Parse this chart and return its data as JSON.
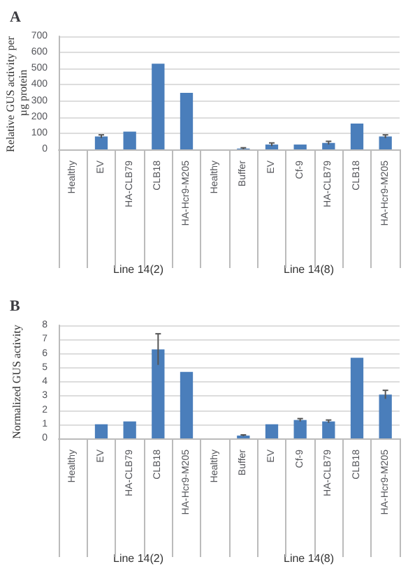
{
  "chart_data": [
    {
      "type": "bar",
      "title": "A",
      "ylabel": "Relative GUS activity per µg protein",
      "categories": [
        "Healthy",
        "EV",
        "HA-CLB79",
        "CLB18",
        "HA-Hcr9-M205",
        "Healthy",
        "Buffer",
        "EV",
        "Cf-9",
        "HA-CLB79",
        "CLB18",
        "HA-Hcr9-M205"
      ],
      "series": [
        {
          "color": "#4a7ebb",
          "values": [
            0,
            80,
            110,
            530,
            350,
            0,
            5,
            30,
            30,
            40,
            160,
            80
          ],
          "errors": [
            null,
            10,
            null,
            null,
            null,
            null,
            5,
            10,
            null,
            10,
            null,
            10
          ]
        }
      ],
      "ylim": [
        0,
        700
      ],
      "yticks": [
        0,
        100,
        200,
        300,
        400,
        500,
        600,
        700
      ],
      "grid": "y",
      "annotations": [
        "Line 14(2)",
        "Line 14(8)"
      ]
    },
    {
      "type": "bar",
      "title": "B",
      "ylabel": "Normalized GUS activity",
      "categories": [
        "Healthy",
        "EV",
        "HA-CLB79",
        "CLB18",
        "HA-Hcr9-M205",
        "Healthy",
        "Buffer",
        "EV",
        "Cf-9",
        "HA-CLB79",
        "CLB18",
        "HA-Hcr9-M205"
      ],
      "series": [
        {
          "color": "#4a7ebb",
          "values": [
            0,
            1,
            1.2,
            6.3,
            4.7,
            0,
            0.2,
            1,
            1.3,
            1.2,
            5.7,
            3.1
          ],
          "errors": [
            null,
            null,
            null,
            1.1,
            null,
            null,
            0.05,
            null,
            0.1,
            0.1,
            null,
            0.3
          ]
        }
      ],
      "ylim": [
        0,
        8
      ],
      "yticks": [
        0,
        1,
        2,
        3,
        4,
        5,
        6,
        7,
        8
      ],
      "grid": "y",
      "annotations": [
        "Line 14(2)",
        "Line 14(8)"
      ]
    }
  ]
}
